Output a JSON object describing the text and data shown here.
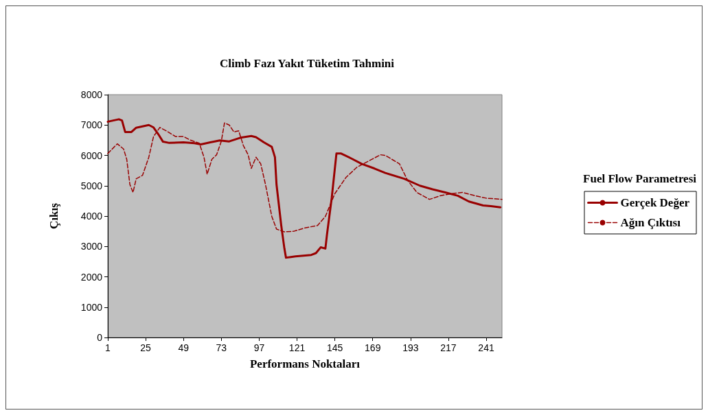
{
  "chart_data": {
    "type": "line",
    "title": "Climb Fazı Yakıt Tüketim Tahmini",
    "xlabel": "Performans Noktaları",
    "ylabel": "Çıkış",
    "legend_title": "Fuel Flow Parametresi",
    "legend": "right",
    "grid": false,
    "marker": "none",
    "xlim": [
      1,
      251
    ],
    "xticks": [
      1,
      25,
      49,
      73,
      97,
      121,
      145,
      169,
      193,
      217,
      241
    ],
    "ylim": [
      0,
      8000
    ],
    "yticks": [
      0,
      1000,
      2000,
      3000,
      4000,
      5000,
      6000,
      7000,
      8000
    ],
    "series": [
      {
        "name": "Gerçek Değer",
        "color": "#990000",
        "line_style": "solid",
        "x": [
          1,
          8,
          10,
          12,
          16,
          19,
          27,
          30,
          33,
          36,
          40,
          49,
          56,
          60,
          66,
          72,
          78,
          85,
          92,
          95,
          100,
          105,
          107,
          108,
          111,
          113,
          114,
          117,
          120,
          130,
          133,
          136,
          139,
          140,
          143,
          146,
          149,
          155,
          162,
          170,
          177,
          189,
          199,
          207,
          215,
          223,
          230,
          239,
          244,
          250
        ],
        "values": [
          7110,
          7190,
          7150,
          6770,
          6770,
          6910,
          7000,
          6920,
          6700,
          6450,
          6410,
          6430,
          6400,
          6360,
          6430,
          6490,
          6460,
          6580,
          6640,
          6600,
          6430,
          6280,
          5940,
          5040,
          3690,
          2930,
          2630,
          2650,
          2670,
          2720,
          2780,
          2970,
          2930,
          3390,
          4590,
          6060,
          6060,
          5910,
          5720,
          5570,
          5420,
          5230,
          5000,
          4880,
          4780,
          4670,
          4480,
          4350,
          4330,
          4290
        ]
      },
      {
        "name": "Ağın Çıktısı",
        "color": "#990000",
        "line_style": "dashed",
        "x": [
          1,
          7,
          11,
          13,
          15,
          17,
          19,
          23,
          27,
          30,
          34,
          38,
          44,
          49,
          53,
          59,
          62,
          64,
          67,
          70,
          73,
          75,
          78,
          81,
          84,
          87,
          90,
          92,
          95,
          98,
          101,
          105,
          108,
          113,
          119,
          126,
          134,
          139,
          145,
          152,
          159,
          167,
          174,
          177,
          186,
          191,
          197,
          205,
          212,
          219,
          226,
          234,
          241,
          251
        ],
        "values": [
          6060,
          6380,
          6210,
          5870,
          5040,
          4780,
          5230,
          5340,
          5940,
          6620,
          6920,
          6810,
          6620,
          6620,
          6510,
          6400,
          5940,
          5380,
          5870,
          6020,
          6470,
          7070,
          7000,
          6770,
          6810,
          6320,
          6020,
          5570,
          5940,
          5720,
          5040,
          3990,
          3570,
          3480,
          3500,
          3610,
          3690,
          3990,
          4740,
          5270,
          5610,
          5830,
          6020,
          6000,
          5720,
          5190,
          4780,
          4550,
          4670,
          4740,
          4780,
          4670,
          4590,
          4550
        ]
      }
    ]
  }
}
